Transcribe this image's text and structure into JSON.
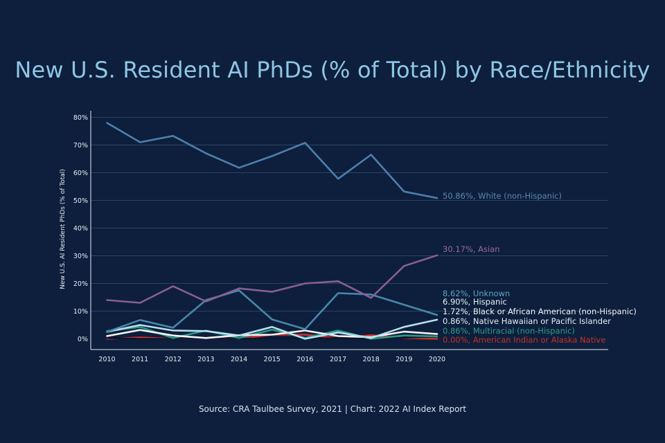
{
  "source": "Source: CRA Taulbee Survey, 2021 | Chart: 2022 AI Index Report",
  "colors": {
    "background": "#0d1f3c",
    "title": "#8fc6e6",
    "grid": "#2c4466",
    "axis": "#e6eef6"
  },
  "chart_data": {
    "type": "line",
    "title": "New U.S. Resident AI PhDs (% of Total) by Race/Ethnicity",
    "xlabel": "",
    "ylabel": "New U.S. AI Resident PhDs (% of Total)",
    "x": [
      "2010",
      "2011",
      "2012",
      "2013",
      "2014",
      "2015",
      "2016",
      "2017",
      "2018",
      "2019",
      "2020"
    ],
    "ylim": [
      0,
      80
    ],
    "yticks": [
      0,
      10,
      20,
      30,
      40,
      50,
      60,
      70,
      80
    ],
    "ytick_labels": [
      "0%",
      "10%",
      "20%",
      "30%",
      "40%",
      "50%",
      "60%",
      "70%",
      "80%"
    ],
    "grid": true,
    "series": [
      {
        "name": "White (non-Hispanic)",
        "label": "50.86%, White (non-Hispanic)",
        "color": "#4e7fae",
        "label_color": "#5a88b5",
        "values": [
          78,
          71,
          73.3,
          67,
          61.8,
          66,
          70.8,
          57.8,
          66.5,
          53.2,
          50.86
        ]
      },
      {
        "name": "Asian",
        "label": "30.17%, Asian",
        "color": "#8b5e94",
        "label_color": "#9a6aa3",
        "values": [
          14,
          13,
          19,
          13.5,
          18.2,
          17,
          20,
          20.8,
          14.8,
          26.3,
          30.17
        ]
      },
      {
        "name": "Unknown",
        "label": "8.62%, Unknown",
        "color": "#4a86ad",
        "label_color": "#5ea6c6",
        "values": [
          2.5,
          6.8,
          4,
          14,
          17.5,
          7,
          3.5,
          16.5,
          16,
          12.3,
          8.62
        ]
      },
      {
        "name": "Hispanic",
        "label": "6.90%, Hispanic",
        "color": "#b9dfee",
        "label_color": "#e6f2f8",
        "values": [
          2.5,
          5,
          3,
          2.8,
          1.2,
          4.3,
          0,
          2.3,
          0.3,
          4.3,
          6.9
        ]
      },
      {
        "name": "Black or African American (non-Hispanic)",
        "label": "1.72%, Black or African American (non-Hispanic)",
        "color": "#f2f4f6",
        "label_color": "#f2f4f6",
        "values": [
          1,
          3.2,
          1.2,
          0.3,
          1.3,
          1.5,
          3,
          1,
          0.6,
          2.6,
          1.72
        ]
      },
      {
        "name": "Native Hawaiian or Pacific Islander",
        "label": "0.86%, Native Hawaiian or Pacific Islander",
        "color": "#0a1530",
        "label_color": "#e6eef6",
        "values": [
          0.3,
          0,
          0,
          0,
          0,
          0.2,
          0,
          0.3,
          0,
          0.4,
          0.86
        ]
      },
      {
        "name": "Multiracial (non-Hispanic)",
        "label": "0.86%, Multiracial (non-Hispanic)",
        "color": "#2a9a86",
        "label_color": "#2e9e8a",
        "values": [
          2.8,
          4.3,
          0.3,
          3,
          0.3,
          3.3,
          0.3,
          3,
          0,
          1.2,
          0.86
        ]
      },
      {
        "name": "American Indian or Alaska Native",
        "label": "0.00%, American Indian or Alaska Native",
        "color": "#d2302b",
        "label_color": "#c8302a",
        "values": [
          0,
          0.5,
          0,
          0,
          0,
          1.5,
          1.5,
          0.3,
          1.3,
          0.3,
          0
        ]
      }
    ]
  }
}
